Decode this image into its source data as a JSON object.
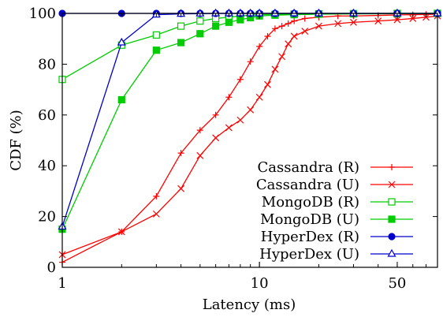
{
  "chart_data": {
    "type": "line",
    "xlabel": "Latency (ms)",
    "ylabel": "CDF (%)",
    "xscale": "log",
    "xlim": [
      1,
      80
    ],
    "ylim": [
      0,
      100
    ],
    "xticks": [
      1,
      10,
      50
    ],
    "xtick_labels": [
      "1",
      "10",
      "50"
    ],
    "yticks": [
      0,
      20,
      40,
      60,
      80,
      100
    ],
    "ytick_labels": [
      "0",
      "20",
      "40",
      "60",
      "80",
      "100"
    ],
    "grid": false,
    "legend_position": "bottom-right",
    "series": [
      {
        "name": "Cassandra (R)",
        "color": "#ff0000",
        "marker": "plus",
        "filled": false,
        "x": [
          1,
          2,
          3,
          4,
          5,
          6,
          7,
          8,
          9,
          10,
          11,
          12,
          13,
          14,
          15,
          17,
          20,
          25,
          30,
          40,
          50,
          60,
          70,
          80
        ],
        "y": [
          2,
          14,
          28,
          45,
          54,
          60,
          67,
          74,
          81,
          87,
          91,
          94,
          95,
          96,
          97,
          98,
          98.5,
          99,
          99,
          99.2,
          99.4,
          99.5,
          99.6,
          99.7
        ]
      },
      {
        "name": "Cassandra (U)",
        "color": "#ff0000",
        "marker": "x",
        "filled": false,
        "x": [
          1,
          2,
          3,
          4,
          5,
          6,
          7,
          8,
          9,
          10,
          11,
          12,
          13,
          14,
          15,
          17,
          20,
          25,
          30,
          40,
          50,
          60,
          70,
          80
        ],
        "y": [
          5,
          14,
          21,
          31,
          44,
          51,
          55,
          58,
          62,
          67,
          72,
          78,
          83,
          88,
          91,
          93,
          95,
          96,
          96.5,
          97,
          97.5,
          98,
          98.5,
          99
        ]
      },
      {
        "name": "MongoDB (R)",
        "color": "#00cc00",
        "marker": "square",
        "filled": false,
        "x": [
          1,
          2,
          3,
          4,
          5,
          6,
          7,
          8,
          9,
          10,
          12,
          15,
          20,
          30,
          50,
          80
        ],
        "y": [
          74,
          87.5,
          91.5,
          95,
          97,
          98,
          98.5,
          99,
          99.3,
          99.5,
          99.6,
          99.7,
          99.8,
          99.9,
          100,
          100
        ]
      },
      {
        "name": "MongoDB (U)",
        "color": "#00cc00",
        "marker": "square",
        "filled": true,
        "x": [
          1,
          2,
          3,
          4,
          5,
          6,
          7,
          8,
          9,
          10,
          12,
          15,
          20,
          30,
          50,
          80
        ],
        "y": [
          15,
          66,
          85.5,
          88.5,
          92,
          95,
          96.5,
          97.5,
          98.3,
          99,
          99.3,
          99.5,
          99.7,
          99.8,
          99.9,
          100
        ]
      },
      {
        "name": "HyperDex (R)",
        "color": "#0000cc",
        "marker": "circle",
        "filled": true,
        "x": [
          1,
          2,
          3,
          4,
          5,
          6,
          7,
          8,
          9,
          10,
          12,
          15,
          20,
          30,
          50,
          80
        ],
        "y": [
          100,
          100,
          100,
          100,
          100,
          100,
          100,
          100,
          100,
          100,
          100,
          100,
          100,
          100,
          100,
          100
        ]
      },
      {
        "name": "HyperDex (U)",
        "color": "#0000cc",
        "marker": "triangle",
        "filled": false,
        "x": [
          1,
          2,
          3,
          4,
          5,
          6,
          7,
          8,
          9,
          10,
          12,
          15,
          20,
          30,
          50,
          80
        ],
        "y": [
          16,
          88.5,
          99.5,
          99.8,
          99.9,
          100,
          100,
          100,
          100,
          100,
          100,
          100,
          100,
          100,
          100,
          100
        ]
      }
    ]
  }
}
